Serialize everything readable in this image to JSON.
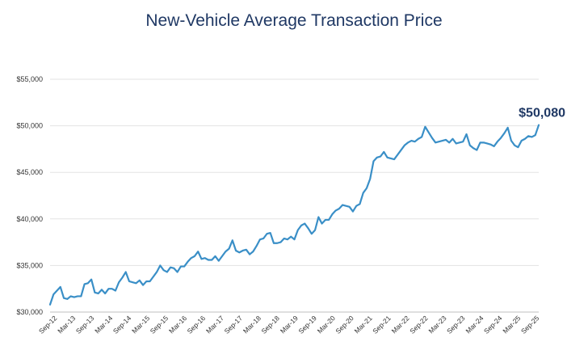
{
  "chart_data": {
    "type": "line",
    "title": "New-Vehicle Average Transaction Price",
    "xlabel": "",
    "ylabel": "",
    "ylim": [
      30000,
      55000
    ],
    "yticks": [
      30000,
      35000,
      40000,
      45000,
      50000,
      55000
    ],
    "ytick_labels": [
      "$30,000",
      "$35,000",
      "$40,000",
      "$45,000",
      "$50,000",
      "$55,000"
    ],
    "xtick_labels": [
      "Sep-12",
      "Mar-13",
      "Sep-13",
      "Mar-14",
      "Sep-14",
      "Mar-15",
      "Sep-15",
      "Mar-16",
      "Sep-16",
      "Mar-17",
      "Sep-17",
      "Mar-18",
      "Sep-18",
      "Mar-19",
      "Sep-19",
      "Mar-20",
      "Sep-20",
      "Mar-21",
      "Sep-21",
      "Mar-22",
      "Sep-22",
      "Mar-23",
      "Sep-23",
      "Mar-24",
      "Sep-24",
      "Mar-25",
      "Sep-25"
    ],
    "grid": "horizontal",
    "line_color": "#3a8fc7",
    "annotation": "$50,080",
    "series": [
      {
        "values": [
          30800,
          31900,
          32300,
          32700,
          31500,
          31400,
          31700,
          31600,
          31700,
          31700,
          33000,
          33100,
          33500,
          32100,
          32000,
          32400,
          32000,
          32500,
          32500,
          32300,
          33200,
          33700,
          34300,
          33300,
          33200,
          33100,
          33400,
          32900,
          33300,
          33300,
          33800,
          34300,
          35000,
          34500,
          34300,
          34800,
          34700,
          34300,
          34900,
          34900,
          35400,
          35800,
          36000,
          36500,
          35700,
          35800,
          35600,
          35600,
          36000,
          35500,
          36000,
          36500,
          36800,
          37700,
          36600,
          36400,
          36600,
          36700,
          36200,
          36500,
          37100,
          37800,
          37900,
          38400,
          38500,
          37400,
          37400,
          37500,
          37900,
          37800,
          38100,
          37800,
          38800,
          39300,
          39500,
          39000,
          38400,
          38800,
          40200,
          39500,
          39900,
          39900,
          40500,
          40900,
          41100,
          41500,
          41400,
          41300,
          40800,
          41400,
          41600,
          42800,
          43300,
          44300,
          46200,
          46600,
          46700,
          47200,
          46600,
          46500,
          46400,
          46900,
          47400,
          47900,
          48200,
          48400,
          48300,
          48600,
          48800,
          49900,
          49300,
          48700,
          48200,
          48300,
          48400,
          48500,
          48200,
          48600,
          48100,
          48200,
          48300,
          49100,
          47900,
          47600,
          47400,
          48200,
          48200,
          48100,
          48000,
          47800,
          48300,
          48700,
          49200,
          49800,
          48400,
          47900,
          47700,
          48400,
          48600,
          48900,
          48800,
          49000,
          50080
        ]
      }
    ]
  }
}
